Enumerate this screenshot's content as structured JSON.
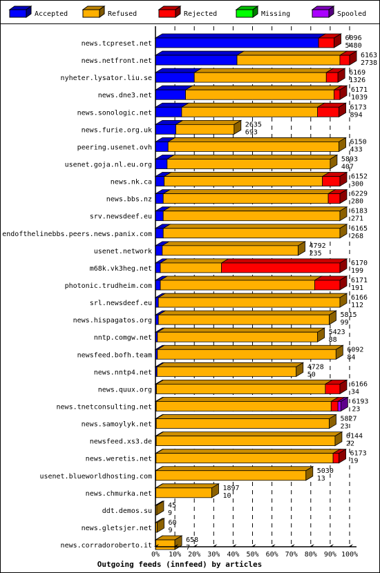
{
  "chart_data": {
    "type": "bar",
    "orientation": "horizontal",
    "stacked": true,
    "style": "3d",
    "title": "Outgoing feeds (innfeed) by articles",
    "xlabel": "Outgoing feeds (innfeed) by articles",
    "xlim": [
      0,
      100
    ],
    "x_ticks": [
      "0%",
      "10%",
      "20%",
      "30%",
      "40%",
      "50%",
      "60%",
      "70%",
      "80%",
      "90%",
      "100%"
    ],
    "legend_position": "top",
    "legend": [
      {
        "name": "Accepted",
        "color": "#0000ff"
      },
      {
        "name": "Refused",
        "color": "#ffb000"
      },
      {
        "name": "Rejected",
        "color": "#ff0000"
      },
      {
        "name": "Missing",
        "color": "#00ff00"
      },
      {
        "name": "Spooled",
        "color": "#aa00ff"
      }
    ],
    "rows": [
      {
        "name": "news.tcpreset.net",
        "total": "6096",
        "accepted_count": "5480",
        "accepted": 84.0,
        "refused": 0.0,
        "rejected": 8.0,
        "spooled": 0.0
      },
      {
        "name": "news.netfront.net",
        "total": "6163",
        "accepted_count": "2738",
        "accepted": 42.0,
        "refused": 53.0,
        "rejected": 5.0,
        "spooled": 0.0
      },
      {
        "name": "nyheter.lysator.liu.se",
        "total": "6169",
        "accepted_count": "1326",
        "accepted": 20.0,
        "refused": 68.0,
        "rejected": 6.0,
        "spooled": 0.0
      },
      {
        "name": "news.dne3.net",
        "total": "6171",
        "accepted_count": "1039",
        "accepted": 15.5,
        "refused": 76.5,
        "rejected": 3.0,
        "spooled": 0.0
      },
      {
        "name": "news.sonologic.net",
        "total": "6173",
        "accepted_count": "894",
        "accepted": 13.5,
        "refused": 70.0,
        "rejected": 11.0,
        "spooled": 0.0
      },
      {
        "name": "news.furie.org.uk",
        "total": "2635",
        "accepted_count": "693",
        "accepted": 10.5,
        "refused": 30.0,
        "rejected": 0.0,
        "spooled": 0.0
      },
      {
        "name": "peering.usenet.ovh",
        "total": "6150",
        "accepted_count": "433",
        "accepted": 6.5,
        "refused": 88.0,
        "rejected": 0.0,
        "spooled": 0.0
      },
      {
        "name": "usenet.goja.nl.eu.org",
        "total": "5893",
        "accepted_count": "407",
        "accepted": 6.0,
        "refused": 84.0,
        "rejected": 0.0,
        "spooled": 0.0
      },
      {
        "name": "news.nk.ca",
        "total": "6152",
        "accepted_count": "300",
        "accepted": 4.5,
        "refused": 81.5,
        "rejected": 9.0,
        "spooled": 0.0
      },
      {
        "name": "news.bbs.nz",
        "total": "6229",
        "accepted_count": "280",
        "accepted": 4.0,
        "refused": 85.0,
        "rejected": 6.0,
        "spooled": 0.0
      },
      {
        "name": "srv.newsdeef.eu",
        "total": "6183",
        "accepted_count": "271",
        "accepted": 4.0,
        "refused": 91.0,
        "rejected": 0.0,
        "spooled": 0.0
      },
      {
        "name": "endofthelinebbs.peers.news.panix.com",
        "total": "6165",
        "accepted_count": "268",
        "accepted": 4.0,
        "refused": 91.0,
        "rejected": 0.0,
        "spooled": 0.0
      },
      {
        "name": "usenet.network",
        "total": "4792",
        "accepted_count": "235",
        "accepted": 3.5,
        "refused": 70.0,
        "rejected": 0.0,
        "spooled": 0.0
      },
      {
        "name": "m68k.vk3heg.net",
        "total": "6170",
        "accepted_count": "199",
        "accepted": 2.5,
        "refused": 31.5,
        "rejected": 61.0,
        "spooled": 0.0
      },
      {
        "name": "photonic.trudheim.com",
        "total": "6171",
        "accepted_count": "191",
        "accepted": 2.5,
        "refused": 79.5,
        "rejected": 13.0,
        "spooled": 0.0
      },
      {
        "name": "srl.newsdeef.eu",
        "total": "6166",
        "accepted_count": "112",
        "accepted": 1.5,
        "refused": 93.5,
        "rejected": 0.0,
        "spooled": 0.0
      },
      {
        "name": "news.hispagatos.org",
        "total": "5815",
        "accepted_count": "99",
        "accepted": 1.5,
        "refused": 88.0,
        "rejected": 0.0,
        "spooled": 0.0
      },
      {
        "name": "nntp.comgw.net",
        "total": "5423",
        "accepted_count": "88",
        "accepted": 1.0,
        "refused": 82.5,
        "rejected": 0.0,
        "spooled": 0.0
      },
      {
        "name": "newsfeed.bofh.team",
        "total": "6092",
        "accepted_count": "84",
        "accepted": 1.0,
        "refused": 92.0,
        "rejected": 0.0,
        "spooled": 0.0
      },
      {
        "name": "news.nntp4.net",
        "total": "4728",
        "accepted_count": "50",
        "accepted": 0.8,
        "refused": 71.7,
        "rejected": 0.0,
        "spooled": 0.0
      },
      {
        "name": "news.quux.org",
        "total": "6166",
        "accepted_count": "34",
        "accepted": 0.5,
        "refused": 87.0,
        "rejected": 7.5,
        "spooled": 0.0
      },
      {
        "name": "news.tnetconsulting.net",
        "total": "6193",
        "accepted_count": "23",
        "accepted": 0.4,
        "refused": 90.1,
        "rejected": 3.5,
        "spooled": 1.5
      },
      {
        "name": "news.samoylyk.net",
        "total": "5827",
        "accepted_count": "23",
        "accepted": 0.4,
        "refused": 89.1,
        "rejected": 0.0,
        "spooled": 0.0
      },
      {
        "name": "newsfeed.xs3.de",
        "total": "6144",
        "accepted_count": "22",
        "accepted": 0.4,
        "refused": 92.1,
        "rejected": 0.0,
        "spooled": 0.0
      },
      {
        "name": "news.weretis.net",
        "total": "6173",
        "accepted_count": "19",
        "accepted": 0.3,
        "refused": 91.2,
        "rejected": 3.0,
        "spooled": 0.0
      },
      {
        "name": "usenet.blueworldhosting.com",
        "total": "5030",
        "accepted_count": "13",
        "accepted": 0.2,
        "refused": 77.3,
        "rejected": 0.0,
        "spooled": 0.0
      },
      {
        "name": "news.chmurka.net",
        "total": "1897",
        "accepted_count": "10",
        "accepted": 0.2,
        "refused": 28.8,
        "rejected": 0.0,
        "spooled": 0.0
      },
      {
        "name": "ddt.demos.su",
        "total": "45",
        "accepted_count": "9",
        "accepted": 0.1,
        "refused": 0.6,
        "rejected": 0.0,
        "spooled": 0.0
      },
      {
        "name": "news.gletsjer.net",
        "total": "60",
        "accepted_count": "9",
        "accepted": 0.1,
        "refused": 0.8,
        "rejected": 0.0,
        "spooled": 0.0
      },
      {
        "name": "news.corradoroberto.it",
        "total": "658",
        "accepted_count": "7",
        "accepted": 0.1,
        "refused": 9.9,
        "rejected": 0.0,
        "spooled": 0.0
      }
    ]
  }
}
